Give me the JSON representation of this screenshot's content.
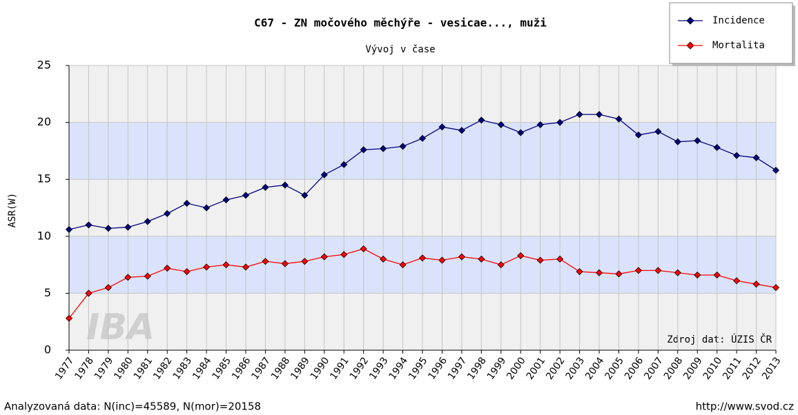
{
  "chart_data": {
    "type": "line",
    "title": "C67 - ZN močového měchýře - vesicae..., muži",
    "subtitle": "Vývoj v čase",
    "y_label": "ASR(W)",
    "source": "Zdroj dat: ÚZIS ČR",
    "watermark": "IBA",
    "footer_left": "Analyzovaná data: N(inc)=45589, N(mor)=20158",
    "footer_right": "http://www.svod.cz",
    "categories": [
      "1977",
      "1978",
      "1979",
      "1980",
      "1981",
      "1982",
      "1983",
      "1984",
      "1985",
      "1986",
      "1987",
      "1988",
      "1989",
      "1990",
      "1991",
      "1992",
      "1993",
      "1994",
      "1995",
      "1996",
      "1997",
      "1998",
      "1999",
      "2000",
      "2001",
      "2002",
      "2003",
      "2004",
      "2005",
      "2006",
      "2007",
      "2008",
      "2009",
      "2010",
      "2011",
      "2012",
      "2013"
    ],
    "series": [
      {
        "name": "Incidence",
        "color": "#000080",
        "values": [
          10.6,
          11.0,
          10.7,
          10.8,
          11.3,
          12.0,
          12.9,
          12.5,
          13.2,
          13.6,
          14.3,
          14.5,
          13.6,
          15.4,
          16.3,
          17.6,
          17.7,
          17.9,
          18.6,
          19.6,
          19.3,
          20.2,
          19.8,
          19.1,
          19.8,
          20.0,
          20.7,
          20.7,
          20.3,
          18.9,
          19.2,
          18.3,
          18.4,
          17.8,
          17.1,
          16.9,
          15.8
        ]
      },
      {
        "name": "Mortalita",
        "color": "#ff0000",
        "values": [
          2.8,
          5.0,
          5.5,
          6.4,
          6.5,
          7.2,
          6.9,
          7.3,
          7.5,
          7.3,
          7.8,
          7.6,
          7.8,
          8.2,
          8.4,
          8.9,
          8.0,
          7.5,
          8.1,
          7.9,
          8.2,
          8.0,
          7.5,
          8.3,
          7.9,
          8.0,
          6.9,
          6.8,
          6.7,
          7.0,
          7.0,
          6.8,
          6.6,
          6.6,
          6.1,
          5.8,
          5.5
        ]
      }
    ],
    "ylim": [
      0,
      25
    ],
    "yticks": [
      0,
      5,
      10,
      15,
      20,
      25
    ],
    "grid": true,
    "legend": "top-right"
  }
}
